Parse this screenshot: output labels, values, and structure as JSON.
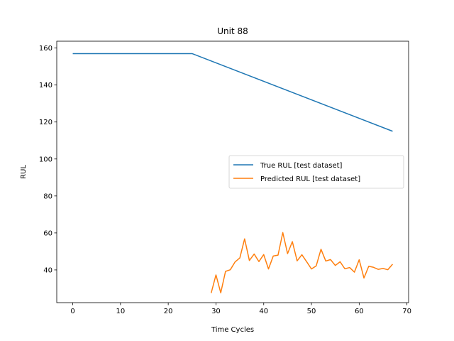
{
  "chart_data": {
    "type": "line",
    "title": "Unit 88",
    "xlabel": "Time Cycles",
    "ylabel": "RUL",
    "xlim": [
      -3.35,
      70.35
    ],
    "ylim": [
      22.3,
      163.7
    ],
    "xticks": [
      0,
      10,
      20,
      30,
      40,
      50,
      60,
      70
    ],
    "yticks": [
      40,
      60,
      80,
      100,
      120,
      140,
      160
    ],
    "grid": false,
    "legend_position": "center-right",
    "series": [
      {
        "name": "True RUL [test dataset]",
        "color": "#1f77b4",
        "x": [
          0,
          25,
          67
        ],
        "y": [
          157,
          157,
          115
        ]
      },
      {
        "name": "Predicted RUL [test dataset]",
        "color": "#ff7f0e",
        "x": [
          29,
          30,
          31,
          32,
          33,
          34,
          35,
          36,
          37,
          38,
          39,
          40,
          41,
          42,
          43,
          44,
          45,
          46,
          47,
          48,
          49,
          50,
          51,
          52,
          53,
          54,
          55,
          56,
          57,
          58,
          59,
          60,
          61,
          62,
          63,
          64,
          65,
          66,
          67
        ],
        "y": [
          27.5,
          37.3,
          27.6,
          39.2,
          40.1,
          44.3,
          46.5,
          56.8,
          45.1,
          48.6,
          44.5,
          48.3,
          40.5,
          47.5,
          48.0,
          60.2,
          48.8,
          55.3,
          44.9,
          48.2,
          44.4,
          40.5,
          42.2,
          51.2,
          44.8,
          45.6,
          42.4,
          44.4,
          40.6,
          41.3,
          38.8,
          45.5,
          35.6,
          42.0,
          41.4,
          40.3,
          40.8,
          40.1,
          43.1
        ]
      }
    ]
  }
}
